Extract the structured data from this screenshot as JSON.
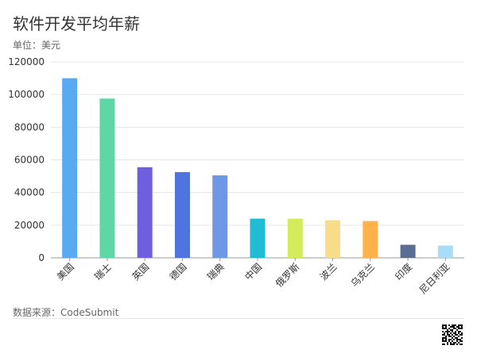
{
  "header": {
    "title": "软件开发平均年薪",
    "unit": "单位：美元"
  },
  "footer": {
    "source": "数据来源：CodeSubmit"
  },
  "chart_data": {
    "type": "bar",
    "title": "软件开发平均年薪",
    "subtitle": "单位：美元",
    "categories": [
      "美国",
      "瑞士",
      "英国",
      "德国",
      "瑞典",
      "中国",
      "俄罗斯",
      "波兰",
      "乌克兰",
      "印度",
      "尼日利亚"
    ],
    "values": [
      110000,
      97500,
      55500,
      52500,
      50500,
      24000,
      24000,
      23000,
      22500,
      8000,
      7500
    ],
    "colors": [
      "#5aaaf2",
      "#5fd6a6",
      "#6f5fe0",
      "#4f73df",
      "#6e98e6",
      "#1fbcd4",
      "#d4ec5c",
      "#f7dd8a",
      "#ffb24a",
      "#5a6e94",
      "#a8dcf7"
    ],
    "ylim": [
      0,
      120000
    ],
    "yticks": [
      0,
      20000,
      40000,
      60000,
      80000,
      100000,
      120000
    ],
    "grid": true,
    "xlabel": "",
    "ylabel": ""
  }
}
